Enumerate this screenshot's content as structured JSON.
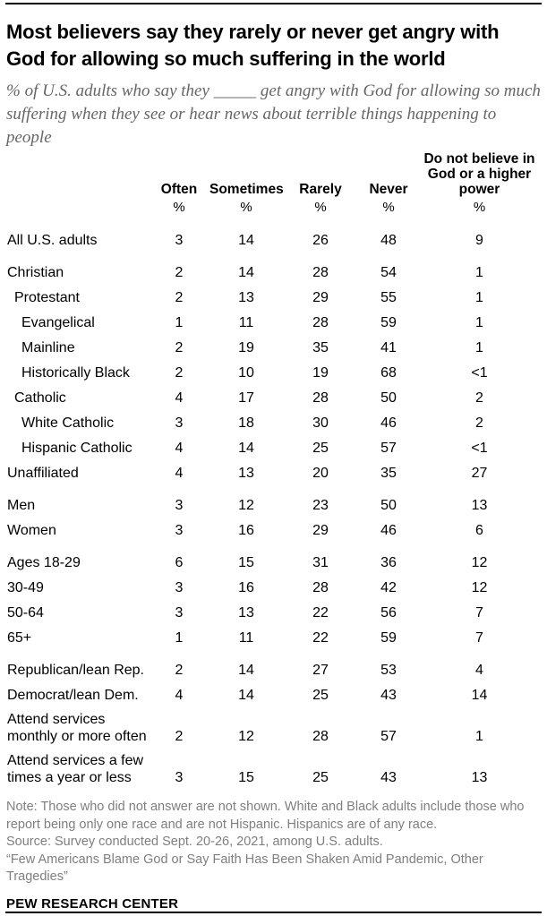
{
  "header": {
    "title": "Most believers say they rarely or never get angry with God for allowing so much suffering in the world",
    "subtitle": "% of U.S. adults who say they _____ get angry with God for allowing so much suffering when they see or hear news about terrible things happening to people"
  },
  "chart_data": {
    "type": "table",
    "title": "Most believers say they rarely or never get angry with God for allowing so much suffering in the world",
    "unit": "%",
    "columns": [
      "Often",
      "Sometimes",
      "Rarely",
      "Never",
      "Do not believe in God or a higher power"
    ],
    "rows": [
      {
        "label": "All U.S. adults",
        "indent": 0,
        "group": true,
        "values": [
          "3",
          "14",
          "26",
          "48",
          "9"
        ]
      },
      {
        "label": "Christian",
        "indent": 0,
        "group": true,
        "values": [
          "2",
          "14",
          "28",
          "54",
          "1"
        ]
      },
      {
        "label": "Protestant",
        "indent": 1,
        "group": false,
        "values": [
          "2",
          "13",
          "29",
          "55",
          "1"
        ]
      },
      {
        "label": "Evangelical",
        "indent": 2,
        "group": false,
        "values": [
          "1",
          "11",
          "28",
          "59",
          "1"
        ]
      },
      {
        "label": "Mainline",
        "indent": 2,
        "group": false,
        "values": [
          "2",
          "19",
          "35",
          "41",
          "1"
        ]
      },
      {
        "label": "Historically Black",
        "indent": 2,
        "group": false,
        "values": [
          "2",
          "10",
          "19",
          "68",
          "<1"
        ]
      },
      {
        "label": "Catholic",
        "indent": 1,
        "group": false,
        "values": [
          "4",
          "17",
          "28",
          "50",
          "2"
        ]
      },
      {
        "label": "White Catholic",
        "indent": 2,
        "group": false,
        "values": [
          "3",
          "18",
          "30",
          "46",
          "2"
        ]
      },
      {
        "label": "Hispanic Catholic",
        "indent": 2,
        "group": false,
        "values": [
          "4",
          "14",
          "25",
          "57",
          "<1"
        ]
      },
      {
        "label": "Unaffiliated",
        "indent": 0,
        "group": false,
        "values": [
          "4",
          "13",
          "20",
          "35",
          "27"
        ]
      },
      {
        "label": "Men",
        "indent": 0,
        "group": true,
        "values": [
          "3",
          "12",
          "23",
          "50",
          "13"
        ]
      },
      {
        "label": "Women",
        "indent": 0,
        "group": false,
        "values": [
          "3",
          "16",
          "29",
          "46",
          "6"
        ]
      },
      {
        "label": "Ages 18-29",
        "indent": 0,
        "group": true,
        "values": [
          "6",
          "15",
          "31",
          "36",
          "12"
        ]
      },
      {
        "label": "30-49",
        "indent": 0,
        "group": false,
        "values": [
          "3",
          "16",
          "28",
          "42",
          "12"
        ]
      },
      {
        "label": "50-64",
        "indent": 0,
        "group": false,
        "values": [
          "3",
          "13",
          "22",
          "56",
          "7"
        ]
      },
      {
        "label": "65+",
        "indent": 0,
        "group": false,
        "values": [
          "1",
          "11",
          "22",
          "59",
          "7"
        ]
      },
      {
        "label": "Republican/lean Rep.",
        "indent": 0,
        "group": true,
        "values": [
          "2",
          "14",
          "27",
          "53",
          "4"
        ]
      },
      {
        "label": "Democrat/lean Dem.",
        "indent": 0,
        "group": false,
        "values": [
          "4",
          "14",
          "25",
          "43",
          "14"
        ]
      },
      {
        "label": "Attend services monthly or more often",
        "indent": 0,
        "group": true,
        "values": [
          "2",
          "12",
          "28",
          "57",
          "1"
        ]
      },
      {
        "label": "Attend services a few times a year or less",
        "indent": 0,
        "group": true,
        "values": [
          "3",
          "15",
          "25",
          "43",
          "13"
        ]
      }
    ]
  },
  "footer": {
    "note": "Note: Those who did not answer are not shown. White and Black adults include those who report being only one race and are not Hispanic. Hispanics are of any race.",
    "source": "Source: Survey conducted Sept. 20-26, 2021, among U.S. adults.",
    "quote": "“Few Americans Blame God or Say Faith Has Been Shaken Amid Pandemic, Other Tragedies”",
    "brand": "PEW RESEARCH CENTER"
  },
  "colors": {
    "text_black": "#000000",
    "subtitle_gray": "#666666",
    "note_gray": "#7f7f7f",
    "background": "#ffffff"
  }
}
